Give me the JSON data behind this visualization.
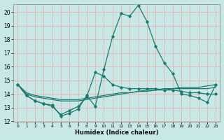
{
  "x": [
    0,
    1,
    2,
    3,
    4,
    5,
    6,
    7,
    8,
    9,
    10,
    11,
    12,
    13,
    14,
    15,
    16,
    17,
    18,
    19,
    20,
    21,
    22,
    23
  ],
  "line1": [
    14.7,
    13.9,
    13.5,
    13.3,
    13.2,
    12.4,
    12.6,
    12.9,
    13.9,
    13.1,
    15.8,
    18.2,
    19.9,
    19.7,
    20.5,
    19.3,
    17.5,
    16.3,
    15.5,
    14.0,
    13.9,
    13.7,
    13.4,
    14.7
  ],
  "line2": [
    14.7,
    13.9,
    13.5,
    13.3,
    13.1,
    12.5,
    12.8,
    13.1,
    13.8,
    15.6,
    15.3,
    14.7,
    14.5,
    14.4,
    14.4,
    14.4,
    14.4,
    14.3,
    14.3,
    14.2,
    14.1,
    14.1,
    14.0,
    14.0
  ],
  "line3": [
    14.7,
    14.0,
    13.8,
    13.7,
    13.6,
    13.5,
    13.5,
    13.5,
    13.6,
    13.7,
    13.8,
    13.9,
    14.0,
    14.1,
    14.2,
    14.2,
    14.3,
    14.3,
    14.4,
    14.4,
    14.4,
    14.4,
    14.4,
    14.5
  ],
  "line4": [
    14.7,
    14.1,
    13.9,
    13.8,
    13.7,
    13.6,
    13.6,
    13.6,
    13.7,
    13.8,
    13.9,
    14.0,
    14.1,
    14.1,
    14.2,
    14.3,
    14.3,
    14.4,
    14.4,
    14.5,
    14.5,
    14.5,
    14.6,
    14.7
  ],
  "color": "#1a7a6e",
  "bg_color": "#c8e8e5",
  "grid_color": "#e8b0b0",
  "xlabel": "Humidex (Indice chaleur)",
  "ylim": [
    12,
    20.6
  ],
  "xlim": [
    -0.5,
    23.5
  ],
  "yticks": [
    12,
    13,
    14,
    15,
    16,
    17,
    18,
    19,
    20
  ],
  "xticks": [
    0,
    1,
    2,
    3,
    4,
    5,
    6,
    7,
    8,
    9,
    10,
    11,
    12,
    13,
    14,
    15,
    16,
    17,
    18,
    19,
    20,
    21,
    22,
    23
  ]
}
